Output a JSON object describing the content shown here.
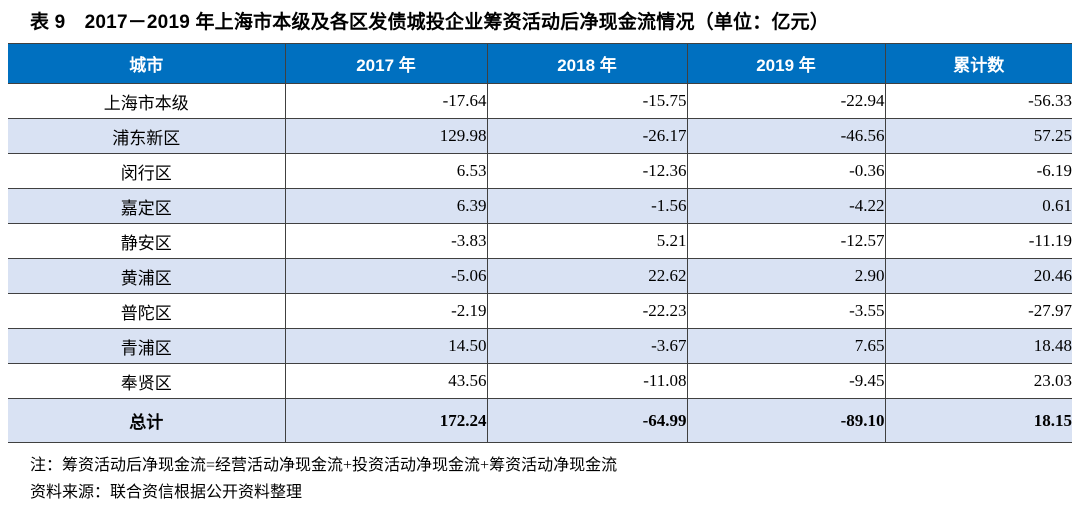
{
  "title": "表 9　2017－2019 年上海市本级及各区发债城投企业筹资活动后净现金流情况（单位：亿元）",
  "table": {
    "columns": [
      "城市",
      "2017 年",
      "2018 年",
      "2019 年",
      "累计数"
    ],
    "rows": [
      {
        "city": "上海市本级",
        "values": [
          "-17.64",
          "-15.75",
          "-22.94",
          "-56.33"
        ]
      },
      {
        "city": "浦东新区",
        "values": [
          "129.98",
          "-26.17",
          "-46.56",
          "57.25"
        ]
      },
      {
        "city": "闵行区",
        "values": [
          "6.53",
          "-12.36",
          "-0.36",
          "-6.19"
        ]
      },
      {
        "city": "嘉定区",
        "values": [
          "6.39",
          "-1.56",
          "-4.22",
          "0.61"
        ]
      },
      {
        "city": "静安区",
        "values": [
          "-3.83",
          "5.21",
          "-12.57",
          "-11.19"
        ]
      },
      {
        "city": "黄浦区",
        "values": [
          "-5.06",
          "22.62",
          "2.90",
          "20.46"
        ]
      },
      {
        "city": "普陀区",
        "values": [
          "-2.19",
          "-22.23",
          "-3.55",
          "-27.97"
        ]
      },
      {
        "city": "青浦区",
        "values": [
          "14.50",
          "-3.67",
          "7.65",
          "18.48"
        ]
      },
      {
        "city": "奉贤区",
        "values": [
          "43.56",
          "-11.08",
          "-9.45",
          "23.03"
        ]
      }
    ],
    "total_row": {
      "city": "总计",
      "values": [
        "172.24",
        "-64.99",
        "-89.10",
        "18.15"
      ]
    }
  },
  "notes": {
    "formula": "注：筹资活动后净现金流=经营活动净现金流+投资活动净现金流+筹资活动净现金流",
    "source": "资料来源：联合资信根据公开资料整理"
  },
  "colors": {
    "header_bg": "#0070C0",
    "header_text": "#FFFFFF",
    "stripe_bg": "#D9E2F3",
    "border": "#404040"
  }
}
